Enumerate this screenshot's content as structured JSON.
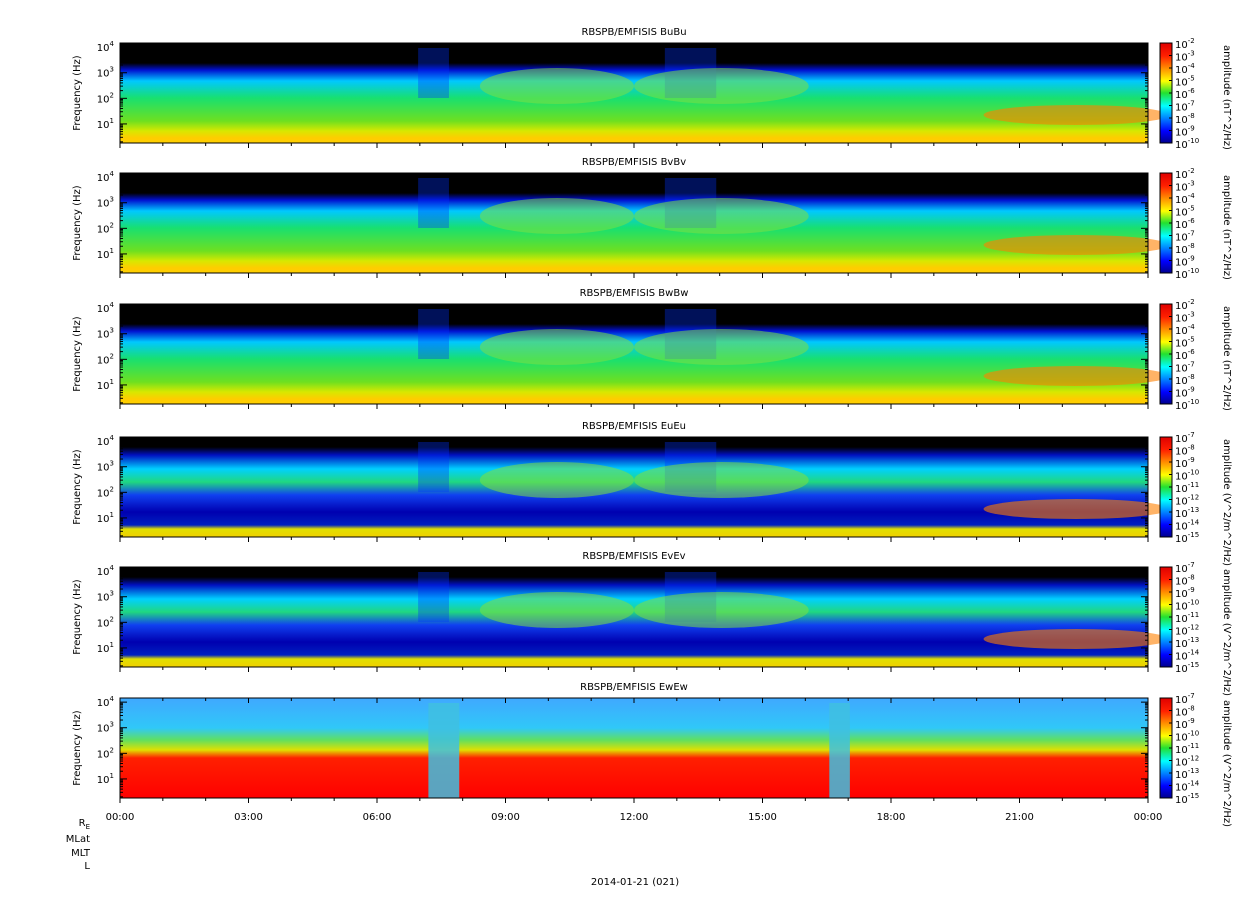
{
  "x_axis": {
    "xlim": [
      0,
      24
    ],
    "xticks": [
      {
        "value": 0,
        "label": "00:00"
      },
      {
        "value": 3,
        "label": "03:00"
      },
      {
        "value": 6,
        "label": "06:00"
      },
      {
        "value": 9,
        "label": "09:00"
      },
      {
        "value": 12,
        "label": "12:00"
      },
      {
        "value": 15,
        "label": "15:00"
      },
      {
        "value": 18,
        "label": "18:00"
      },
      {
        "value": 21,
        "label": "21:00"
      },
      {
        "value": 24,
        "label": "00:00"
      }
    ]
  },
  "ephemeris_labels": [
    {
      "label": "R",
      "subscript": "E"
    },
    {
      "label": "MLat"
    },
    {
      "label": "MLT"
    },
    {
      "label": "L"
    }
  ],
  "date_label": "2014-01-21 (021)",
  "chart_data": [
    {
      "type": "spectrogram",
      "title": "RBSPB/EMFISIS  BuBu",
      "ylabel": "Frequency (Hz)",
      "log_y": true,
      "ylim": [
        1.8,
        14500
      ],
      "yticks": [
        {
          "value": 10,
          "label": "10",
          "exponent": "1"
        },
        {
          "value": 100,
          "label": "10",
          "exponent": "2"
        },
        {
          "value": 1000,
          "label": "10",
          "exponent": "3"
        },
        {
          "value": 10000,
          "label": "10",
          "exponent": "4"
        }
      ],
      "colorbar_label": "amplitude (nT^2/Hz)",
      "zlim": [
        1e-10,
        0.01
      ],
      "zticks": [
        {
          "value": 0.01,
          "label": "10",
          "exponent": "-2"
        },
        {
          "value": 0.001,
          "label": "10",
          "exponent": "-3"
        },
        {
          "value": 0.0001,
          "label": "10",
          "exponent": "-4"
        },
        {
          "value": 1e-05,
          "label": "10",
          "exponent": "-5"
        },
        {
          "value": 1e-06,
          "label": "10",
          "exponent": "-6"
        },
        {
          "value": 1e-07,
          "label": "10",
          "exponent": "-7"
        },
        {
          "value": 1e-08,
          "label": "10",
          "exponent": "-8"
        },
        {
          "value": 1e-09,
          "label": "10",
          "exponent": "-9"
        },
        {
          "value": 1e-10,
          "label": "10",
          "exponent": "-10"
        }
      ]
    },
    {
      "type": "spectrogram",
      "title": "RBSPB/EMFISIS  BvBv",
      "ylabel": "Frequency (Hz)",
      "log_y": true,
      "ylim": [
        1.8,
        14500
      ],
      "yticks": [
        {
          "value": 10,
          "label": "10",
          "exponent": "1"
        },
        {
          "value": 100,
          "label": "10",
          "exponent": "2"
        },
        {
          "value": 1000,
          "label": "10",
          "exponent": "3"
        },
        {
          "value": 10000,
          "label": "10",
          "exponent": "4"
        }
      ],
      "colorbar_label": "amplitude (nT^2/Hz)",
      "zlim": [
        1e-10,
        0.01
      ],
      "zticks": [
        {
          "value": 0.01,
          "label": "10",
          "exponent": "-2"
        },
        {
          "value": 0.001,
          "label": "10",
          "exponent": "-3"
        },
        {
          "value": 0.0001,
          "label": "10",
          "exponent": "-4"
        },
        {
          "value": 1e-05,
          "label": "10",
          "exponent": "-5"
        },
        {
          "value": 1e-06,
          "label": "10",
          "exponent": "-6"
        },
        {
          "value": 1e-07,
          "label": "10",
          "exponent": "-7"
        },
        {
          "value": 1e-08,
          "label": "10",
          "exponent": "-8"
        },
        {
          "value": 1e-09,
          "label": "10",
          "exponent": "-9"
        },
        {
          "value": 1e-10,
          "label": "10",
          "exponent": "-10"
        }
      ]
    },
    {
      "type": "spectrogram",
      "title": "RBSPB/EMFISIS  BwBw",
      "ylabel": "Frequency (Hz)",
      "log_y": true,
      "ylim": [
        1.8,
        14500
      ],
      "yticks": [
        {
          "value": 10,
          "label": "10",
          "exponent": "1"
        },
        {
          "value": 100,
          "label": "10",
          "exponent": "2"
        },
        {
          "value": 1000,
          "label": "10",
          "exponent": "3"
        },
        {
          "value": 10000,
          "label": "10",
          "exponent": "4"
        }
      ],
      "colorbar_label": "amplitude (nT^2/Hz)",
      "zlim": [
        1e-10,
        0.01
      ],
      "zticks": [
        {
          "value": 0.01,
          "label": "10",
          "exponent": "-2"
        },
        {
          "value": 0.001,
          "label": "10",
          "exponent": "-3"
        },
        {
          "value": 0.0001,
          "label": "10",
          "exponent": "-4"
        },
        {
          "value": 1e-05,
          "label": "10",
          "exponent": "-5"
        },
        {
          "value": 1e-06,
          "label": "10",
          "exponent": "-6"
        },
        {
          "value": 1e-07,
          "label": "10",
          "exponent": "-7"
        },
        {
          "value": 1e-08,
          "label": "10",
          "exponent": "-8"
        },
        {
          "value": 1e-09,
          "label": "10",
          "exponent": "-9"
        },
        {
          "value": 1e-10,
          "label": "10",
          "exponent": "-10"
        }
      ]
    },
    {
      "type": "spectrogram",
      "title": "RBSPB/EMFISIS  EuEu",
      "ylabel": "Frequency (Hz)",
      "log_y": true,
      "ylim": [
        1.8,
        14500
      ],
      "yticks": [
        {
          "value": 10,
          "label": "10",
          "exponent": "1"
        },
        {
          "value": 100,
          "label": "10",
          "exponent": "2"
        },
        {
          "value": 1000,
          "label": "10",
          "exponent": "3"
        },
        {
          "value": 10000,
          "label": "10",
          "exponent": "4"
        }
      ],
      "colorbar_label": "amplitude (V^2/m^2/Hz)",
      "zlim": [
        1e-15,
        1e-07
      ],
      "zticks": [
        {
          "value": 1e-07,
          "label": "10",
          "exponent": "-7"
        },
        {
          "value": 1e-08,
          "label": "10",
          "exponent": "-8"
        },
        {
          "value": 1e-09,
          "label": "10",
          "exponent": "-9"
        },
        {
          "value": 1e-10,
          "label": "10",
          "exponent": "-10"
        },
        {
          "value": 1e-11,
          "label": "10",
          "exponent": "-11"
        },
        {
          "value": 1e-12,
          "label": "10",
          "exponent": "-12"
        },
        {
          "value": 1e-13,
          "label": "10",
          "exponent": "-13"
        },
        {
          "value": 1e-14,
          "label": "10",
          "exponent": "-14"
        },
        {
          "value": 1e-15,
          "label": "10",
          "exponent": "-15"
        }
      ]
    },
    {
      "type": "spectrogram",
      "title": "RBSPB/EMFISIS  EvEv",
      "ylabel": "Frequency (Hz)",
      "log_y": true,
      "ylim": [
        1.8,
        14500
      ],
      "yticks": [
        {
          "value": 10,
          "label": "10",
          "exponent": "1"
        },
        {
          "value": 100,
          "label": "10",
          "exponent": "2"
        },
        {
          "value": 1000,
          "label": "10",
          "exponent": "3"
        },
        {
          "value": 10000,
          "label": "10",
          "exponent": "4"
        }
      ],
      "colorbar_label": "amplitude (V^2/m^2/Hz)",
      "zlim": [
        1e-15,
        1e-07
      ],
      "zticks": [
        {
          "value": 1e-07,
          "label": "10",
          "exponent": "-7"
        },
        {
          "value": 1e-08,
          "label": "10",
          "exponent": "-8"
        },
        {
          "value": 1e-09,
          "label": "10",
          "exponent": "-9"
        },
        {
          "value": 1e-10,
          "label": "10",
          "exponent": "-10"
        },
        {
          "value": 1e-11,
          "label": "10",
          "exponent": "-11"
        },
        {
          "value": 1e-12,
          "label": "10",
          "exponent": "-12"
        },
        {
          "value": 1e-13,
          "label": "10",
          "exponent": "-13"
        },
        {
          "value": 1e-14,
          "label": "10",
          "exponent": "-14"
        },
        {
          "value": 1e-15,
          "label": "10",
          "exponent": "-15"
        }
      ]
    },
    {
      "type": "spectrogram",
      "title": "RBSPB/EMFISIS  EwEw",
      "ylabel": "Frequency (Hz)",
      "log_y": true,
      "ylim": [
        1.8,
        14500
      ],
      "yticks": [
        {
          "value": 10,
          "label": "10",
          "exponent": "1"
        },
        {
          "value": 100,
          "label": "10",
          "exponent": "2"
        },
        {
          "value": 1000,
          "label": "10",
          "exponent": "3"
        },
        {
          "value": 10000,
          "label": "10",
          "exponent": "4"
        }
      ],
      "colorbar_label": "amplitude (V^2/m^2/Hz)",
      "zlim": [
        1e-15,
        1e-07
      ],
      "zticks": [
        {
          "value": 1e-07,
          "label": "10",
          "exponent": "-7"
        },
        {
          "value": 1e-08,
          "label": "10",
          "exponent": "-8"
        },
        {
          "value": 1e-09,
          "label": "10",
          "exponent": "-9"
        },
        {
          "value": 1e-10,
          "label": "10",
          "exponent": "-10"
        },
        {
          "value": 1e-11,
          "label": "10",
          "exponent": "-11"
        },
        {
          "value": 1e-12,
          "label": "10",
          "exponent": "-12"
        },
        {
          "value": 1e-13,
          "label": "10",
          "exponent": "-13"
        },
        {
          "value": 1e-14,
          "label": "10",
          "exponent": "-14"
        },
        {
          "value": 1e-15,
          "label": "10",
          "exponent": "-15"
        }
      ]
    }
  ]
}
